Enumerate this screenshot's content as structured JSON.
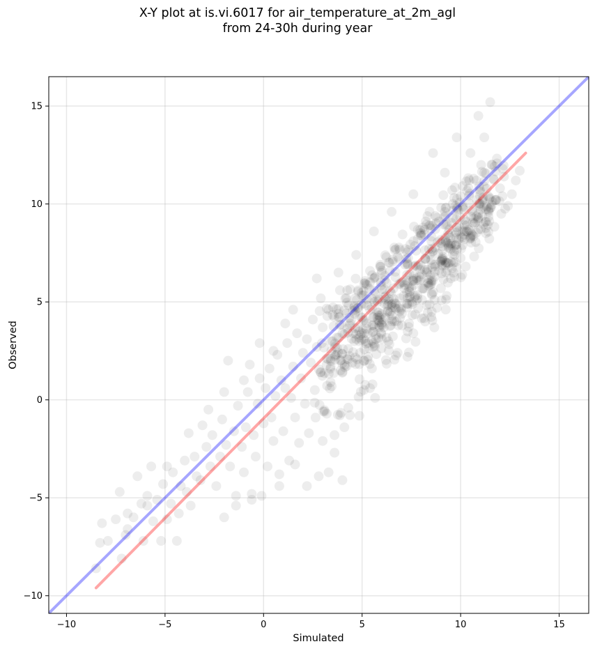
{
  "chart_data": {
    "type": "scatter",
    "title": "X-Y plot at is.vi.6017 for air_temperature_at_2m_agl",
    "subtitle": "from 24-30h during year",
    "xlabel": "Simulated",
    "ylabel": "Observed",
    "xlim": [
      -10.9,
      16.5
    ],
    "ylim": [
      -10.9,
      16.5
    ],
    "xticks": [
      -10,
      -5,
      0,
      5,
      10,
      15
    ],
    "yticks": [
      -10,
      -5,
      0,
      5,
      10,
      15
    ],
    "xtick_labels": [
      "−10",
      "−5",
      "0",
      "5",
      "10",
      "15"
    ],
    "ytick_labels": [
      "−10",
      "−5",
      "0",
      "5",
      "10",
      "15"
    ],
    "grid": true,
    "point_color": "#000000",
    "point_alpha": 0.07,
    "lines": [
      {
        "role": "identity",
        "color": "#0000ff",
        "alpha": 0.35,
        "x": [
          -10.9,
          16.5
        ],
        "y": [
          -10.9,
          16.5
        ]
      },
      {
        "role": "regression",
        "color": "#ff0000",
        "alpha": 0.35,
        "x": [
          -8.5,
          13.3
        ],
        "y": [
          -9.6,
          12.6
        ]
      }
    ],
    "points": [
      [
        -8.5,
        -8.6
      ],
      [
        -8.3,
        -7.3
      ],
      [
        -8.2,
        -6.3
      ],
      [
        -7.9,
        -7.2
      ],
      [
        -7.5,
        -6.1
      ],
      [
        -7.3,
        -4.7
      ],
      [
        -7.2,
        -8.1
      ],
      [
        -7.0,
        -6.9
      ],
      [
        -6.9,
        -5.8
      ],
      [
        -6.6,
        -6.0
      ],
      [
        -6.4,
        -3.9
      ],
      [
        -6.2,
        -5.3
      ],
      [
        -6.1,
        -7.2
      ],
      [
        -5.9,
        -4.9
      ],
      [
        -5.7,
        -3.4
      ],
      [
        -5.6,
        -6.2
      ],
      [
        -5.4,
        -5.1
      ],
      [
        -5.2,
        -7.2
      ],
      [
        -5.1,
        -4.3
      ],
      [
        -4.9,
        -6.1
      ],
      [
        -4.7,
        -5.3
      ],
      [
        -4.6,
        -3.7
      ],
      [
        -4.4,
        -7.2
      ],
      [
        -4.3,
        -5.8
      ],
      [
        -4.2,
        -4.4
      ],
      [
        -4.0,
        -3.1
      ],
      [
        -3.9,
        -4.7
      ],
      [
        -3.7,
        -5.4
      ],
      [
        -3.5,
        -2.9
      ],
      [
        -3.4,
        -3.9
      ],
      [
        -3.2,
        -4.1
      ],
      [
        -3.1,
        -1.3
      ],
      [
        -2.9,
        -2.4
      ],
      [
        -2.7,
        -3.4
      ],
      [
        -2.6,
        -1.8
      ],
      [
        -2.4,
        -4.4
      ],
      [
        -2.2,
        -2.9
      ],
      [
        -2.1,
        -1.0
      ],
      [
        -2.0,
        -6.0
      ],
      [
        -1.9,
        -2.3
      ],
      [
        -1.8,
        2.0
      ],
      [
        -1.7,
        -3.4
      ],
      [
        -1.5,
        -1.6
      ],
      [
        -1.4,
        -4.9
      ],
      [
        -1.3,
        -0.3
      ],
      [
        -1.1,
        -2.4
      ],
      [
        -1.0,
        -3.7
      ],
      [
        -0.9,
        -1.4
      ],
      [
        -0.8,
        0.4
      ],
      [
        -0.6,
        -5.1
      ],
      [
        -0.5,
        -1.8
      ],
      [
        -0.4,
        -2.9
      ],
      [
        -0.3,
        -0.2
      ],
      [
        -0.2,
        1.1
      ],
      [
        -0.1,
        -4.9
      ],
      [
        0.0,
        -1.2
      ],
      [
        0.1,
        0.6
      ],
      [
        0.2,
        -3.4
      ],
      [
        0.3,
        1.6
      ],
      [
        0.4,
        -0.9
      ],
      [
        0.5,
        -2.1
      ],
      [
        0.6,
        0.2
      ],
      [
        0.7,
        2.3
      ],
      [
        0.8,
        -4.4
      ],
      [
        0.9,
        1.0
      ],
      [
        1.0,
        -1.6
      ],
      [
        1.1,
        0.6
      ],
      [
        1.2,
        2.9
      ],
      [
        1.3,
        -3.1
      ],
      [
        1.4,
        0.1
      ],
      [
        1.5,
        1.7
      ],
      [
        1.6,
        -0.9
      ],
      [
        1.7,
        3.4
      ],
      [
        1.8,
        -2.2
      ],
      [
        1.9,
        1.1
      ],
      [
        2.0,
        2.4
      ],
      [
        2.1,
        -0.2
      ],
      [
        2.2,
        3.1
      ],
      [
        2.3,
        -1.7
      ],
      [
        2.4,
        1.9
      ],
      [
        2.5,
        4.1
      ],
      [
        2.6,
        0.5
      ],
      [
        2.7,
        2.7
      ],
      [
        2.8,
        -3.9
      ],
      [
        2.9,
        1.4
      ],
      [
        3.0,
        3.7
      ],
      [
        3.1,
        -0.6
      ],
      [
        3.2,
        2.1
      ],
      [
        3.3,
        4.6
      ],
      [
        3.4,
        0.9
      ],
      [
        3.5,
        3.0
      ],
      [
        3.6,
        -2.7
      ],
      [
        3.7,
        2.3
      ],
      [
        3.8,
        4.4
      ],
      [
        3.9,
        1.5
      ],
      [
        4.0,
        3.4
      ],
      [
        4.1,
        -1.4
      ],
      [
        4.2,
        5.2
      ],
      [
        4.3,
        2.6
      ],
      [
        4.4,
        3.9
      ],
      [
        4.5,
        1.9
      ],
      [
        4.6,
        4.7
      ],
      [
        4.7,
        3.1
      ],
      [
        4.8,
        5.6
      ],
      [
        4.9,
        2.4
      ],
      [
        5.0,
        4.2
      ],
      [
        5.1,
        3.4
      ],
      [
        5.2,
        5.9
      ],
      [
        5.3,
        2.9
      ],
      [
        5.4,
        4.6
      ],
      [
        5.5,
        3.8
      ],
      [
        5.6,
        6.2
      ],
      [
        5.7,
        3.3
      ],
      [
        5.8,
        5.0
      ],
      [
        5.9,
        4.2
      ],
      [
        6.0,
        6.6
      ],
      [
        6.1,
        3.7
      ],
      [
        6.2,
        5.3
      ],
      [
        6.3,
        4.5
      ],
      [
        6.4,
        7.0
      ],
      [
        6.5,
        4.1
      ],
      [
        6.6,
        5.7
      ],
      [
        6.7,
        4.9
      ],
      [
        6.8,
        7.3
      ],
      [
        6.9,
        4.5
      ],
      [
        7.0,
        6.0
      ],
      [
        7.1,
        5.3
      ],
      [
        7.2,
        7.7
      ],
      [
        7.3,
        4.9
      ],
      [
        7.4,
        6.4
      ],
      [
        7.5,
        5.7
      ],
      [
        7.6,
        8.1
      ],
      [
        7.7,
        5.3
      ],
      [
        7.8,
        6.8
      ],
      [
        7.9,
        6.1
      ],
      [
        8.0,
        8.5
      ],
      [
        8.1,
        5.7
      ],
      [
        8.2,
        7.2
      ],
      [
        8.3,
        6.5
      ],
      [
        8.4,
        8.9
      ],
      [
        8.5,
        6.1
      ],
      [
        8.6,
        7.6
      ],
      [
        8.7,
        6.9
      ],
      [
        8.8,
        9.3
      ],
      [
        8.9,
        6.6
      ],
      [
        9.0,
        8.0
      ],
      [
        9.1,
        7.3
      ],
      [
        9.2,
        9.6
      ],
      [
        9.3,
        7.0
      ],
      [
        9.4,
        8.4
      ],
      [
        9.5,
        7.7
      ],
      [
        9.6,
        10.0
      ],
      [
        9.7,
        7.4
      ],
      [
        9.8,
        8.8
      ],
      [
        9.9,
        8.2
      ],
      [
        10.0,
        10.4
      ],
      [
        10.1,
        7.9
      ],
      [
        10.2,
        9.2
      ],
      [
        10.3,
        8.6
      ],
      [
        10.4,
        10.8
      ],
      [
        10.5,
        8.3
      ],
      [
        10.6,
        9.6
      ],
      [
        10.7,
        9.0
      ],
      [
        10.8,
        11.2
      ],
      [
        10.9,
        8.7
      ],
      [
        11.0,
        10.0
      ],
      [
        11.1,
        9.4
      ],
      [
        11.2,
        11.6
      ],
      [
        11.3,
        9.1
      ],
      [
        11.4,
        10.4
      ],
      [
        11.5,
        9.8
      ],
      [
        11.6,
        12.0
      ],
      [
        11.8,
        10.2
      ],
      [
        12.0,
        10.8
      ],
      [
        12.2,
        11.4
      ],
      [
        12.4,
        9.9
      ],
      [
        12.6,
        10.5
      ],
      [
        12.8,
        11.2
      ],
      [
        13.0,
        11.7
      ],
      [
        11.5,
        15.2
      ],
      [
        10.9,
        14.5
      ],
      [
        11.2,
        13.4
      ],
      [
        9.8,
        13.4
      ],
      [
        10.5,
        12.6
      ],
      [
        8.6,
        12.6
      ],
      [
        9.2,
        11.6
      ],
      [
        7.6,
        10.5
      ],
      [
        6.5,
        9.6
      ],
      [
        5.6,
        8.6
      ],
      [
        4.7,
        7.4
      ],
      [
        3.8,
        6.5
      ],
      [
        2.7,
        6.2
      ],
      [
        1.5,
        4.6
      ],
      [
        1.1,
        3.9
      ],
      [
        0.5,
        2.5
      ],
      [
        -0.2,
        2.9
      ],
      [
        -0.7,
        1.8
      ],
      [
        -1.0,
        1.0
      ],
      [
        -2.0,
        0.4
      ],
      [
        -2.8,
        -0.5
      ],
      [
        -3.8,
        -1.7
      ],
      [
        -4.9,
        -3.4
      ],
      [
        -5.9,
        -5.4
      ],
      [
        -6.9,
        -6.6
      ],
      [
        3.6,
        -1.8
      ],
      [
        4.0,
        -4.1
      ],
      [
        3.3,
        -3.7
      ],
      [
        2.2,
        -4.4
      ],
      [
        1.6,
        -3.3
      ],
      [
        0.8,
        -3.8
      ],
      [
        -0.6,
        -4.8
      ],
      [
        -1.4,
        -5.4
      ],
      [
        5.3,
        2.2
      ],
      [
        6.0,
        3.1
      ],
      [
        7.3,
        2.2
      ],
      [
        8.2,
        4.0
      ],
      [
        9.0,
        5.7
      ],
      [
        9.5,
        6.2
      ],
      [
        8.8,
        4.7
      ],
      [
        7.6,
        3.4
      ],
      [
        6.8,
        2.4
      ],
      [
        5.4,
        0.6
      ],
      [
        4.3,
        -0.4
      ],
      [
        3.0,
        -2.1
      ]
    ]
  }
}
